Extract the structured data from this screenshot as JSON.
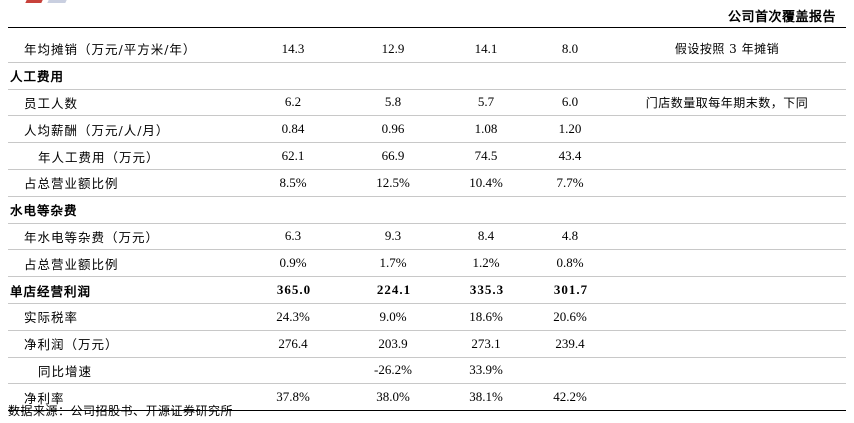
{
  "header": {
    "title": "公司首次覆盖报告"
  },
  "rows": [
    {
      "type": "data",
      "indent": 0,
      "label": "年均摊销（万元/平方米/年）",
      "values": [
        "14.3",
        "12.9",
        "14.1",
        "8.0"
      ],
      "note": "假设按照 3 年摊销"
    },
    {
      "type": "section",
      "label": "人工费用"
    },
    {
      "type": "data",
      "indent": 0,
      "label": "员工人数",
      "values": [
        "6.2",
        "5.8",
        "5.7",
        "6.0"
      ],
      "note": "门店数量取每年期末数，下同"
    },
    {
      "type": "data",
      "indent": 0,
      "label": "人均薪酬（万元/人/月）",
      "values": [
        "0.84",
        "0.96",
        "1.08",
        "1.20"
      ],
      "note": ""
    },
    {
      "type": "data",
      "indent": 1,
      "label": "年人工费用（万元）",
      "values": [
        "62.1",
        "66.9",
        "74.5",
        "43.4"
      ],
      "note": ""
    },
    {
      "type": "data",
      "indent": 0,
      "label": "占总营业额比例",
      "values": [
        "8.5%",
        "12.5%",
        "10.4%",
        "7.7%"
      ],
      "note": ""
    },
    {
      "type": "section",
      "label": "水电等杂费"
    },
    {
      "type": "data",
      "indent": 0,
      "label": "年水电等杂费（万元）",
      "values": [
        "6.3",
        "9.3",
        "8.4",
        "4.8"
      ],
      "note": ""
    },
    {
      "type": "data",
      "indent": 0,
      "label": "占总营业额比例",
      "values": [
        "0.9%",
        "1.7%",
        "1.2%",
        "0.8%"
      ],
      "note": ""
    },
    {
      "type": "section",
      "label": "单店经营利润",
      "values": [
        "365.0",
        "224.1",
        "335.3",
        "301.7"
      ]
    },
    {
      "type": "data",
      "indent": 0,
      "label": "实际税率",
      "values": [
        "24.3%",
        "9.0%",
        "18.6%",
        "20.6%"
      ],
      "note": ""
    },
    {
      "type": "data",
      "indent": 0,
      "label": "净利润（万元）",
      "values": [
        "276.4",
        "203.9",
        "273.1",
        "239.4"
      ],
      "note": ""
    },
    {
      "type": "data",
      "indent": 1,
      "label": "同比增速",
      "values": [
        "",
        "-26.2%",
        "33.9%",
        ""
      ],
      "note": ""
    },
    {
      "type": "data",
      "indent": 0,
      "label": "净利率",
      "values": [
        "37.8%",
        "38.0%",
        "38.1%",
        "42.2%"
      ],
      "note": ""
    }
  ],
  "footer": {
    "source": "数据来源：公司招股书、开源证券研究所"
  }
}
